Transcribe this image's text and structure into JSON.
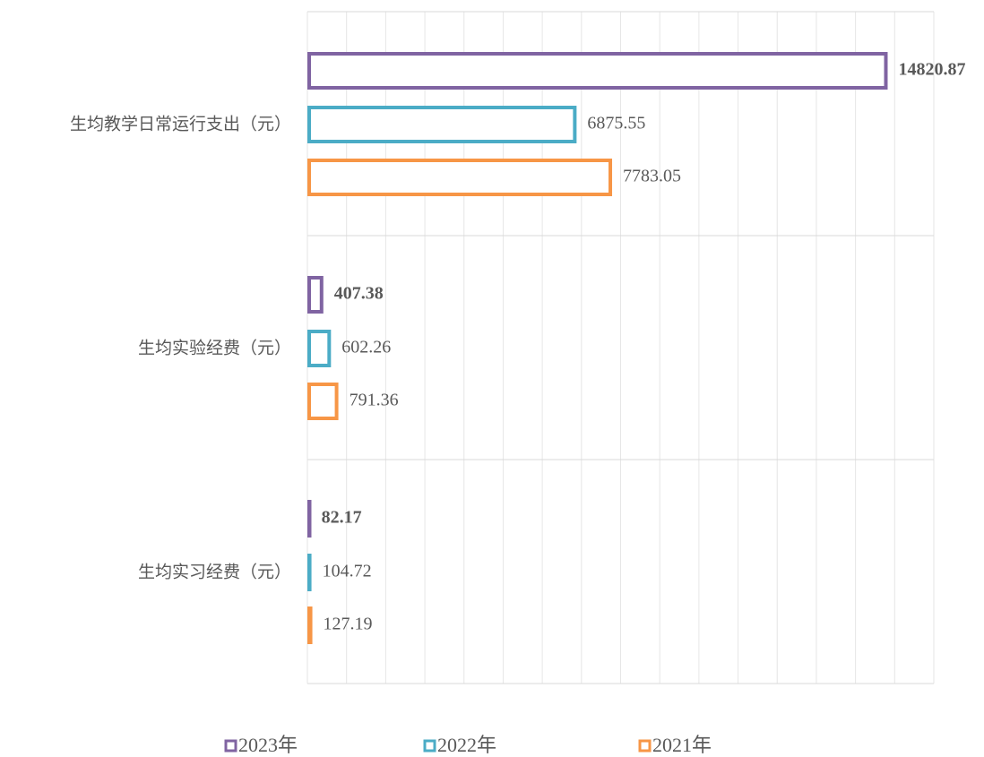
{
  "chart_data": {
    "type": "hbar",
    "categories": [
      "生均教学日常运行支出（元）",
      "生均实验经费（元）",
      "生均实习经费（元）"
    ],
    "series": [
      {
        "name": "2023年",
        "color": "#8064a2",
        "bold": true,
        "values": [
          14820.87,
          407.38,
          82.17
        ]
      },
      {
        "name": "2022年",
        "color": "#4bacc6",
        "bold": false,
        "values": [
          6875.55,
          602.26,
          104.72
        ]
      },
      {
        "name": "2021年",
        "color": "#f79646",
        "bold": false,
        "values": [
          7783.05,
          791.36,
          127.19
        ]
      }
    ],
    "xlim": [
      0,
      16000
    ],
    "xticks": [
      0,
      1000,
      2000,
      3000,
      4000,
      5000,
      6000,
      7000,
      8000,
      9000,
      10000,
      11000,
      12000,
      13000,
      14000,
      15000,
      16000
    ],
    "grid": true,
    "legend": "bottom"
  }
}
